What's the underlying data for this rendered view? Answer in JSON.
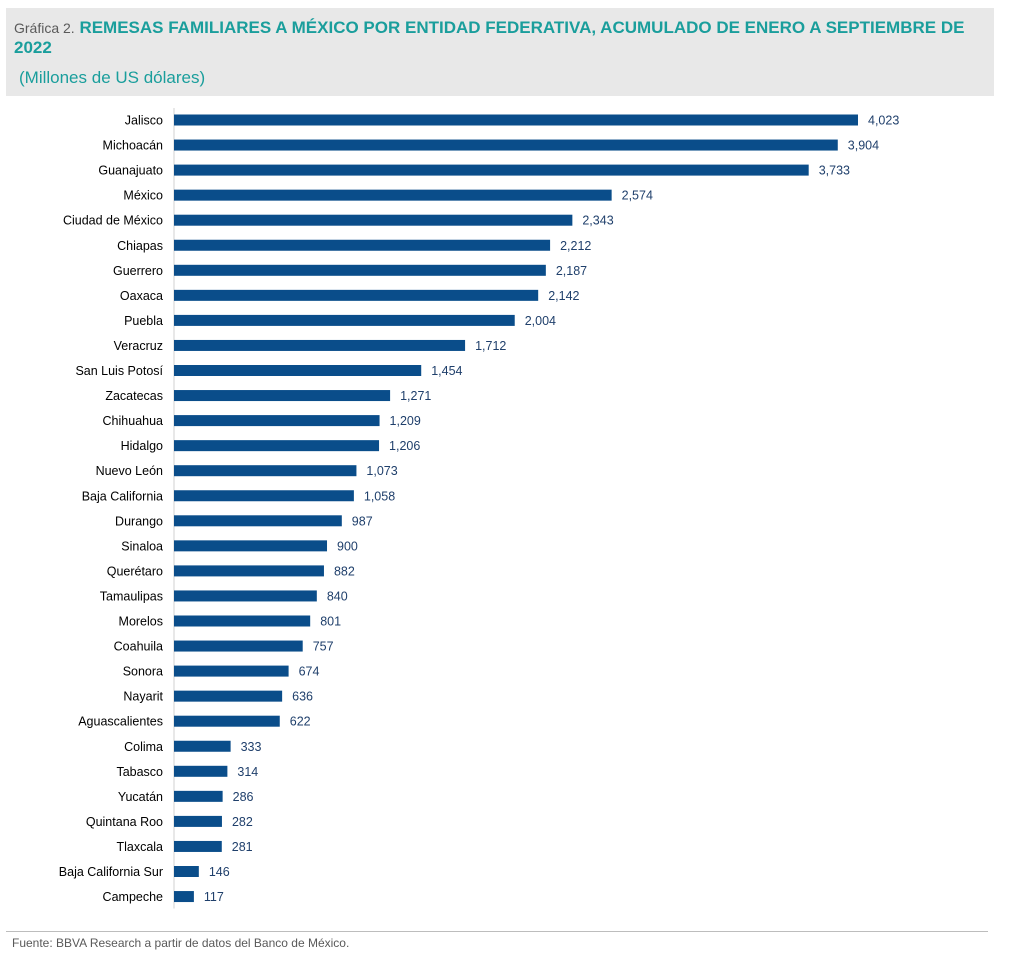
{
  "header": {
    "figure_label": "Gráfica 2.",
    "title": "REMESAS FAMILIARES A MÉXICO POR ENTIDAD FEDERATIVA, ACUMULADO DE ENERO A SEPTIEMBRE DE 2022",
    "subtitle": "(Millones de US dólares)"
  },
  "colors": {
    "bar": "#0a4d8a",
    "title": "#1a9e9c",
    "header_background": "#e8e8e8"
  },
  "chart_data": {
    "type": "bar",
    "orientation": "horizontal",
    "title": "REMESAS FAMILIARES A MÉXICO POR ENTIDAD FEDERATIVA, ACUMULADO DE ENERO A SEPTIEMBRE DE 2022",
    "subtitle": "(Millones de US dólares)",
    "categories": [
      "Jalisco",
      "Michoacán",
      "Guanajuato",
      "México",
      "Ciudad de México",
      "Chiapas",
      "Guerrero",
      "Oaxaca",
      "Puebla",
      "Veracruz",
      "San Luis Potosí",
      "Zacatecas",
      "Chihuahua",
      "Hidalgo",
      "Nuevo León",
      "Baja California",
      "Durango",
      "Sinaloa",
      "Querétaro",
      "Tamaulipas",
      "Morelos",
      "Coahuila",
      "Sonora",
      "Nayarit",
      "Aguascalientes",
      "Colima",
      "Tabasco",
      "Yucatán",
      "Quintana Roo",
      "Tlaxcala",
      "Baja California Sur",
      "Campeche"
    ],
    "values": [
      4023,
      3904,
      3733,
      2574,
      2343,
      2212,
      2187,
      2142,
      2004,
      1712,
      1454,
      1271,
      1209,
      1206,
      1073,
      1058,
      987,
      900,
      882,
      840,
      801,
      757,
      674,
      636,
      622,
      333,
      314,
      286,
      282,
      281,
      146,
      117
    ],
    "value_labels": [
      "4,023",
      "3,904",
      "3,733",
      "2,574",
      "2,343",
      "2,212",
      "2,187",
      "2,142",
      "2,004",
      "1,712",
      "1,454",
      "1,271",
      "1,209",
      "1,206",
      "1,073",
      "1,058",
      "987",
      "900",
      "882",
      "840",
      "801",
      "757",
      "674",
      "636",
      "622",
      "333",
      "314",
      "286",
      "282",
      "281",
      "146",
      "117"
    ],
    "xlim": [
      0,
      4023
    ],
    "grid": false,
    "legend": false
  },
  "footer": {
    "source": "Fuente: BBVA Research a partir de datos del Banco de México."
  }
}
